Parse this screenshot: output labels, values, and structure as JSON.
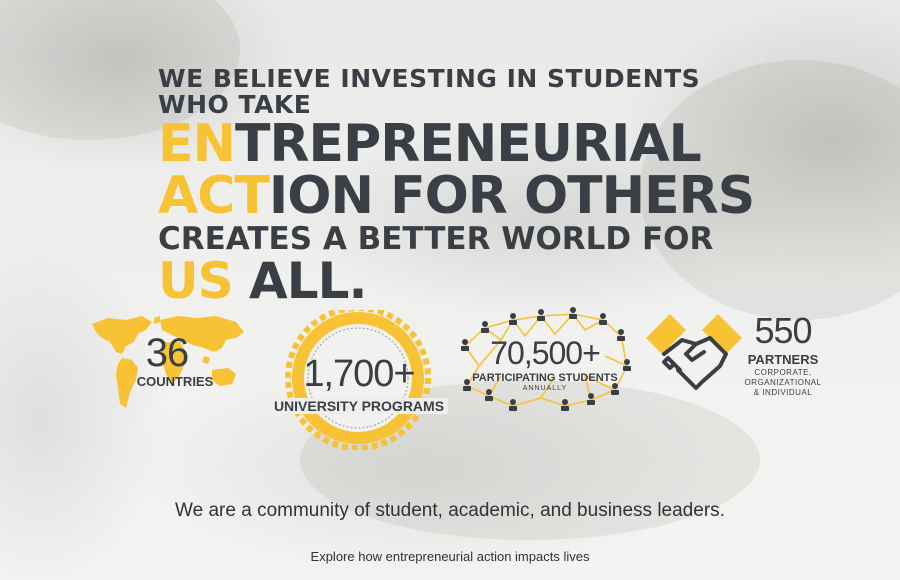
{
  "hero": {
    "line1": "WE BELIEVE INVESTING IN STUDENTS WHO TAKE",
    "line2_hl": "EN",
    "line2_rest": "TREPRENEURIAL",
    "line3_hl": "ACT",
    "line3_rest": "ION FOR OTHERS",
    "line4": "CREATES A BETTER WORLD FOR",
    "line5_hl": "US",
    "line5_rest": " ALL."
  },
  "stats": {
    "countries": {
      "number": "36",
      "label": "COUNTRIES",
      "icon": "world-map-icon"
    },
    "programs": {
      "number": "1,700+",
      "label": "UNIVERSITY PROGRAMS",
      "icon": "seal-badge-icon"
    },
    "students": {
      "number": "70,500+",
      "label": "PARTICIPATING STUDENTS",
      "sublabel": "ANNUALLY",
      "icon": "network-people-icon"
    },
    "partners": {
      "number": "550",
      "label": "PARTNERS",
      "sub1": "CORPORATE,",
      "sub2": "ORGANIZATIONAL",
      "sub3": "& INDIVIDUAL",
      "icon": "handshake-icon"
    }
  },
  "tagline": "We are a community of student, academic, and business leaders.",
  "explore_link": "Explore how entrepreneurial action impacts lives",
  "colors": {
    "accent": "#f7c233",
    "text": "#3a3f46"
  }
}
